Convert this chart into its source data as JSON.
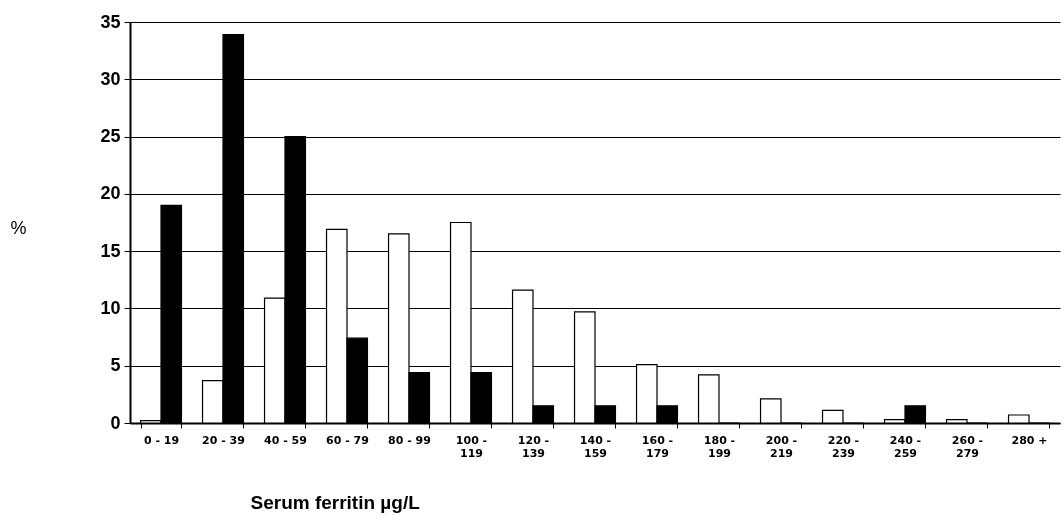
{
  "chart_data": {
    "type": "bar",
    "xlabel": "Serum ferritin µg/L",
    "ylabel": "%",
    "categories": [
      "0 - 19",
      "20 - 39",
      "40 - 59",
      "60 - 79",
      "80 - 99",
      "100 - 119",
      "120 - 139",
      "140 - 159",
      "160 - 179",
      "180 - 199",
      "200 - 219",
      "220 - 239",
      "240 - 259",
      "260 - 279",
      "280 +"
    ],
    "series": [
      {
        "color": "#ffffff",
        "values": [
          0.2,
          3.7,
          10.9,
          16.9,
          16.5,
          17.5,
          11.6,
          9.7,
          5.1,
          4.2,
          2.1,
          1.1,
          0.3,
          0.3,
          0.7
        ]
      },
      {
        "color": "#000000",
        "values": [
          19,
          33.9,
          25,
          7.4,
          4.4,
          4.4,
          1.5,
          1.5,
          1.5,
          0,
          0,
          0,
          1.5,
          0,
          0
        ]
      }
    ],
    "ylim": [
      0,
      35
    ],
    "yticks": [
      0,
      5,
      10,
      15,
      20,
      25,
      30,
      35
    ],
    "grid": "y",
    "legend": false
  }
}
